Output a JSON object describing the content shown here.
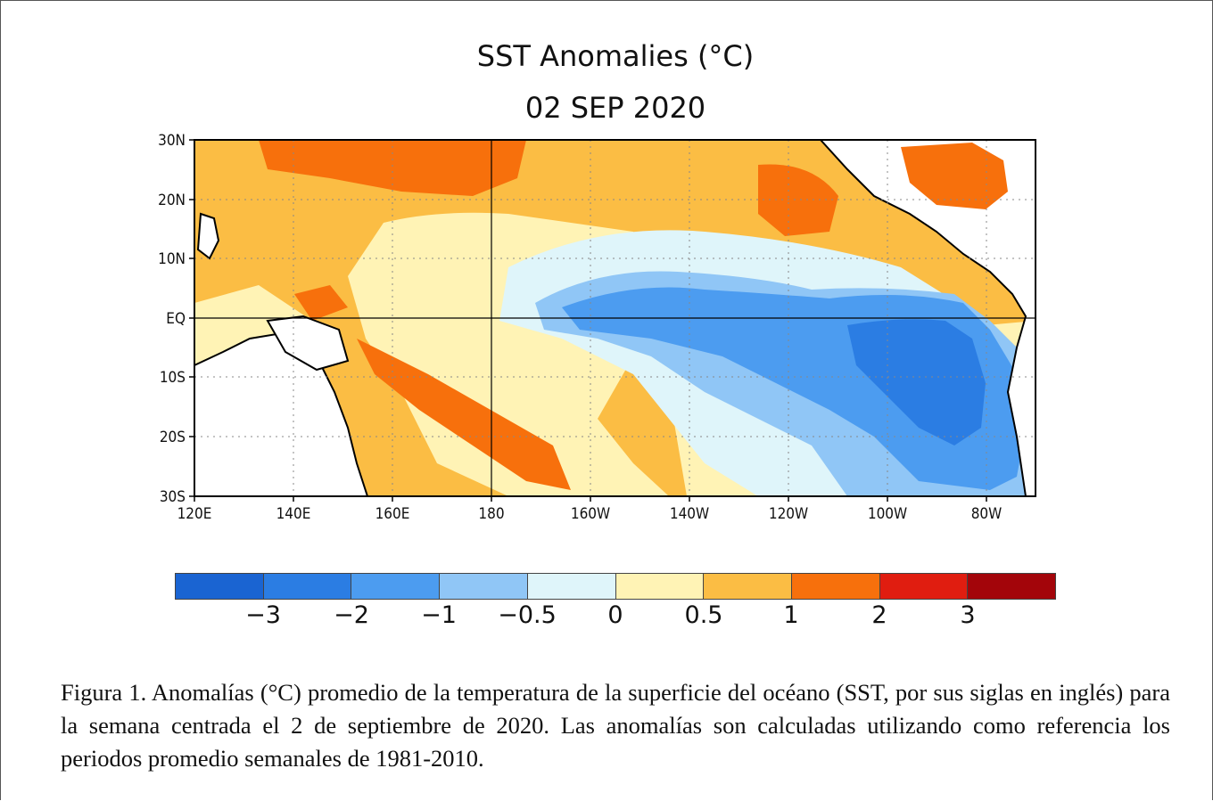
{
  "title": "SST Anomalies (°C)",
  "date": "02 SEP 2020",
  "map": {
    "latitude_labels": [
      "30N",
      "20N",
      "10N",
      "EQ",
      "10S",
      "20S",
      "30S"
    ],
    "longitude_labels": [
      "120E",
      "140E",
      "160E",
      "180",
      "160W",
      "140W",
      "120W",
      "100W",
      "80W"
    ],
    "reference_lines": [
      "EQ",
      "180"
    ],
    "grid": "dotted"
  },
  "colorbar": {
    "colors": [
      "#1a64d2",
      "#2b7de3",
      "#4c9cf0",
      "#90c6f6",
      "#dff5fa",
      "#fff3b5",
      "#fbbd44",
      "#f7700c",
      "#e01d10",
      "#a3050a"
    ],
    "tick_labels": [
      "−3",
      "−2",
      "−1",
      "−0.5",
      "0",
      "0.5",
      "1",
      "2",
      "3"
    ]
  },
  "caption": "Figura 1. Anomalías (°C) promedio de la temperatura de la superficie del océano (SST, por sus siglas en inglés) para la semana centrada el 2 de septiembre de 2020. Las anomalías son calculadas utilizando como referencia los periodos promedio semanales de 1981-2010."
}
